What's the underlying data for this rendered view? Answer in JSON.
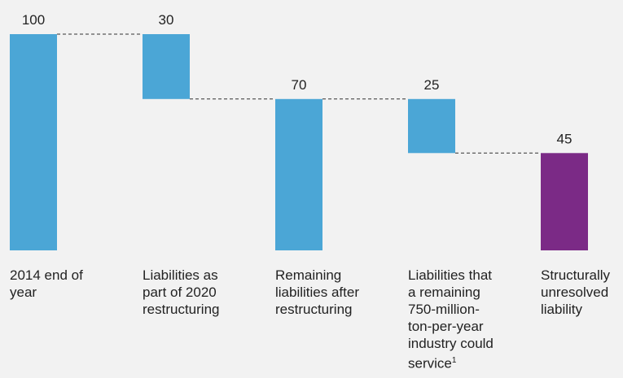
{
  "chart_data": {
    "type": "waterfall",
    "title": "",
    "xlabel": "",
    "ylabel": "",
    "ylim": [
      0,
      100
    ],
    "grid": false,
    "legend": "none",
    "categories": [
      "2014 end of year",
      "Liabilities as part of 2020 restructuring",
      "Remaining liabilities after restructuring",
      "Liabilities that a remaining 750-million-ton-per-year industry could service",
      "Structurally unresolved liability"
    ],
    "category_footnotes": [
      "",
      "",
      "",
      "1",
      ""
    ],
    "bars": [
      {
        "label": "100",
        "bottom": 0,
        "top": 100,
        "color": "#4ba6d6"
      },
      {
        "label": "30",
        "bottom": 70,
        "top": 100,
        "color": "#4ba6d6"
      },
      {
        "label": "70",
        "bottom": 0,
        "top": 70,
        "color": "#4ba6d6"
      },
      {
        "label": "25",
        "bottom": 45,
        "top": 70,
        "color": "#4ba6d6"
      },
      {
        "label": "45",
        "bottom": 0,
        "top": 45,
        "color": "#7b2a86"
      }
    ],
    "values": [
      100,
      30,
      70,
      25,
      45
    ]
  }
}
